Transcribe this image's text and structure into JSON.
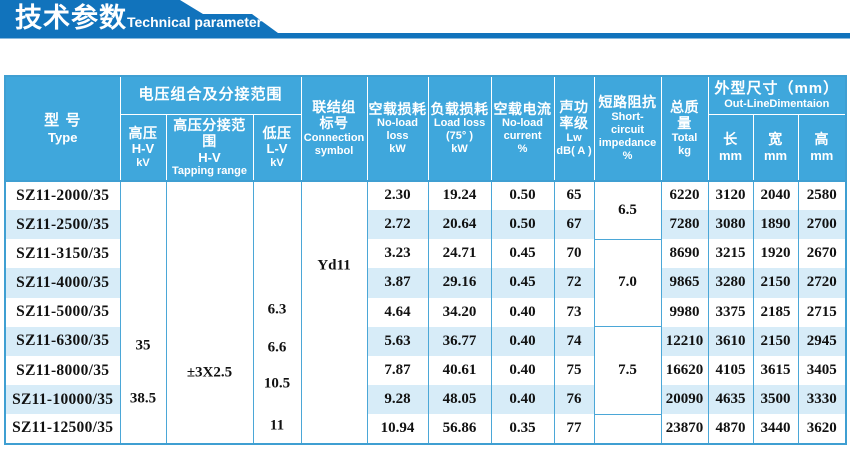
{
  "banner": {
    "title_zh": "技术参数",
    "title_en": "Technical parameter"
  },
  "colors": {
    "banner_blue": "#1173BC",
    "header_blue": "#3FA7DC",
    "row_band_blue": "#D7ECF8",
    "grid_blue": "#4BA7D7"
  },
  "table": {
    "headers": {
      "type_zh": "型  号",
      "type_en": "Type",
      "voltage_group": "电压组合及分接范围",
      "hv_zh": "高压",
      "hv_en": "H-V",
      "hv_unit": "kV",
      "tap_zh": "高压分接范围",
      "tap_en": "H-V",
      "tap_unit": "Tapping range",
      "lv_zh": "低压",
      "lv_en": "L-V",
      "lv_unit": "kV",
      "conn_l1": "联结组",
      "conn_l2": "标号",
      "conn_l3": "Connection",
      "conn_l4": "symbol",
      "nll_zh": "空载损耗",
      "nll_en1": "No-load",
      "nll_en2": "loss",
      "nll_unit": "kW",
      "ll_zh": "负载损耗",
      "ll_en1": "Load loss",
      "ll_en2": "(75°  )",
      "ll_unit": "kW",
      "nlc_zh": "空载电流",
      "nlc_en1": "No-load",
      "nlc_en2": "current",
      "nlc_unit": "%",
      "snd_zh1": "声功",
      "snd_zh2": "率级",
      "snd_en": "Lw",
      "snd_unit": "dB( A )",
      "imp_zh": "短路阻抗",
      "imp_en1": "Short-",
      "imp_en2": "circuit",
      "imp_en3": "impedance",
      "imp_unit": "%",
      "mass_zh1": "总质",
      "mass_zh2": "量",
      "mass_en": "Total",
      "mass_unit": "kg",
      "dim_zh": "外型尺寸（mm）",
      "dim_en": "Out-LineDimentaion",
      "len_zh": "长",
      "len_unit": "mm",
      "wid_zh": "宽",
      "wid_unit": "mm",
      "hei_zh": "高",
      "hei_unit": "mm"
    },
    "merged": {
      "hv": [
        "35",
        "38.5"
      ],
      "tapping": "±3X2.5",
      "lv": [
        "6.3",
        "6.6",
        "10.5",
        "11"
      ],
      "connection": "Yd11",
      "impedance": [
        {
          "value": "6.5",
          "span": 2
        },
        {
          "value": "7.0",
          "span": 3
        },
        {
          "value": "7.5",
          "span": 3
        },
        {
          "value": "",
          "span": 1
        }
      ]
    },
    "rows": [
      {
        "model": "SZ11-2000/35",
        "nll": "2.30",
        "ll": "19.24",
        "nlc": "0.50",
        "lw": "65",
        "total": "6220",
        "l": "3120",
        "w": "2040",
        "h": "2580"
      },
      {
        "model": "SZ11-2500/35",
        "nll": "2.72",
        "ll": "20.64",
        "nlc": "0.50",
        "lw": "67",
        "total": "7280",
        "l": "3080",
        "w": "1890",
        "h": "2700"
      },
      {
        "model": "SZ11-3150/35",
        "nll": "3.23",
        "ll": "24.71",
        "nlc": "0.45",
        "lw": "70",
        "total": "8690",
        "l": "3215",
        "w": "1920",
        "h": "2670"
      },
      {
        "model": "SZ11-4000/35",
        "nll": "3.87",
        "ll": "29.16",
        "nlc": "0.45",
        "lw": "72",
        "total": "9865",
        "l": "3280",
        "w": "2150",
        "h": "2720"
      },
      {
        "model": "SZ11-5000/35",
        "nll": "4.64",
        "ll": "34.20",
        "nlc": "0.40",
        "lw": "73",
        "total": "9980",
        "l": "3375",
        "w": "2185",
        "h": "2715"
      },
      {
        "model": "SZ11-6300/35",
        "nll": "5.63",
        "ll": "36.77",
        "nlc": "0.40",
        "lw": "74",
        "total": "12210",
        "l": "3610",
        "w": "2150",
        "h": "2945"
      },
      {
        "model": "SZ11-8000/35",
        "nll": "7.87",
        "ll": "40.61",
        "nlc": "0.40",
        "lw": "75",
        "total": "16620",
        "l": "4105",
        "w": "3615",
        "h": "3405"
      },
      {
        "model": "SZ11-10000/35",
        "nll": "9.28",
        "ll": "48.05",
        "nlc": "0.40",
        "lw": "76",
        "total": "20090",
        "l": "4635",
        "w": "3500",
        "h": "3330"
      },
      {
        "model": "SZ11-12500/35",
        "nll": "10.94",
        "ll": "56.86",
        "nlc": "0.35",
        "lw": "77",
        "total": "23870",
        "l": "4870",
        "w": "3440",
        "h": "3620"
      }
    ]
  }
}
